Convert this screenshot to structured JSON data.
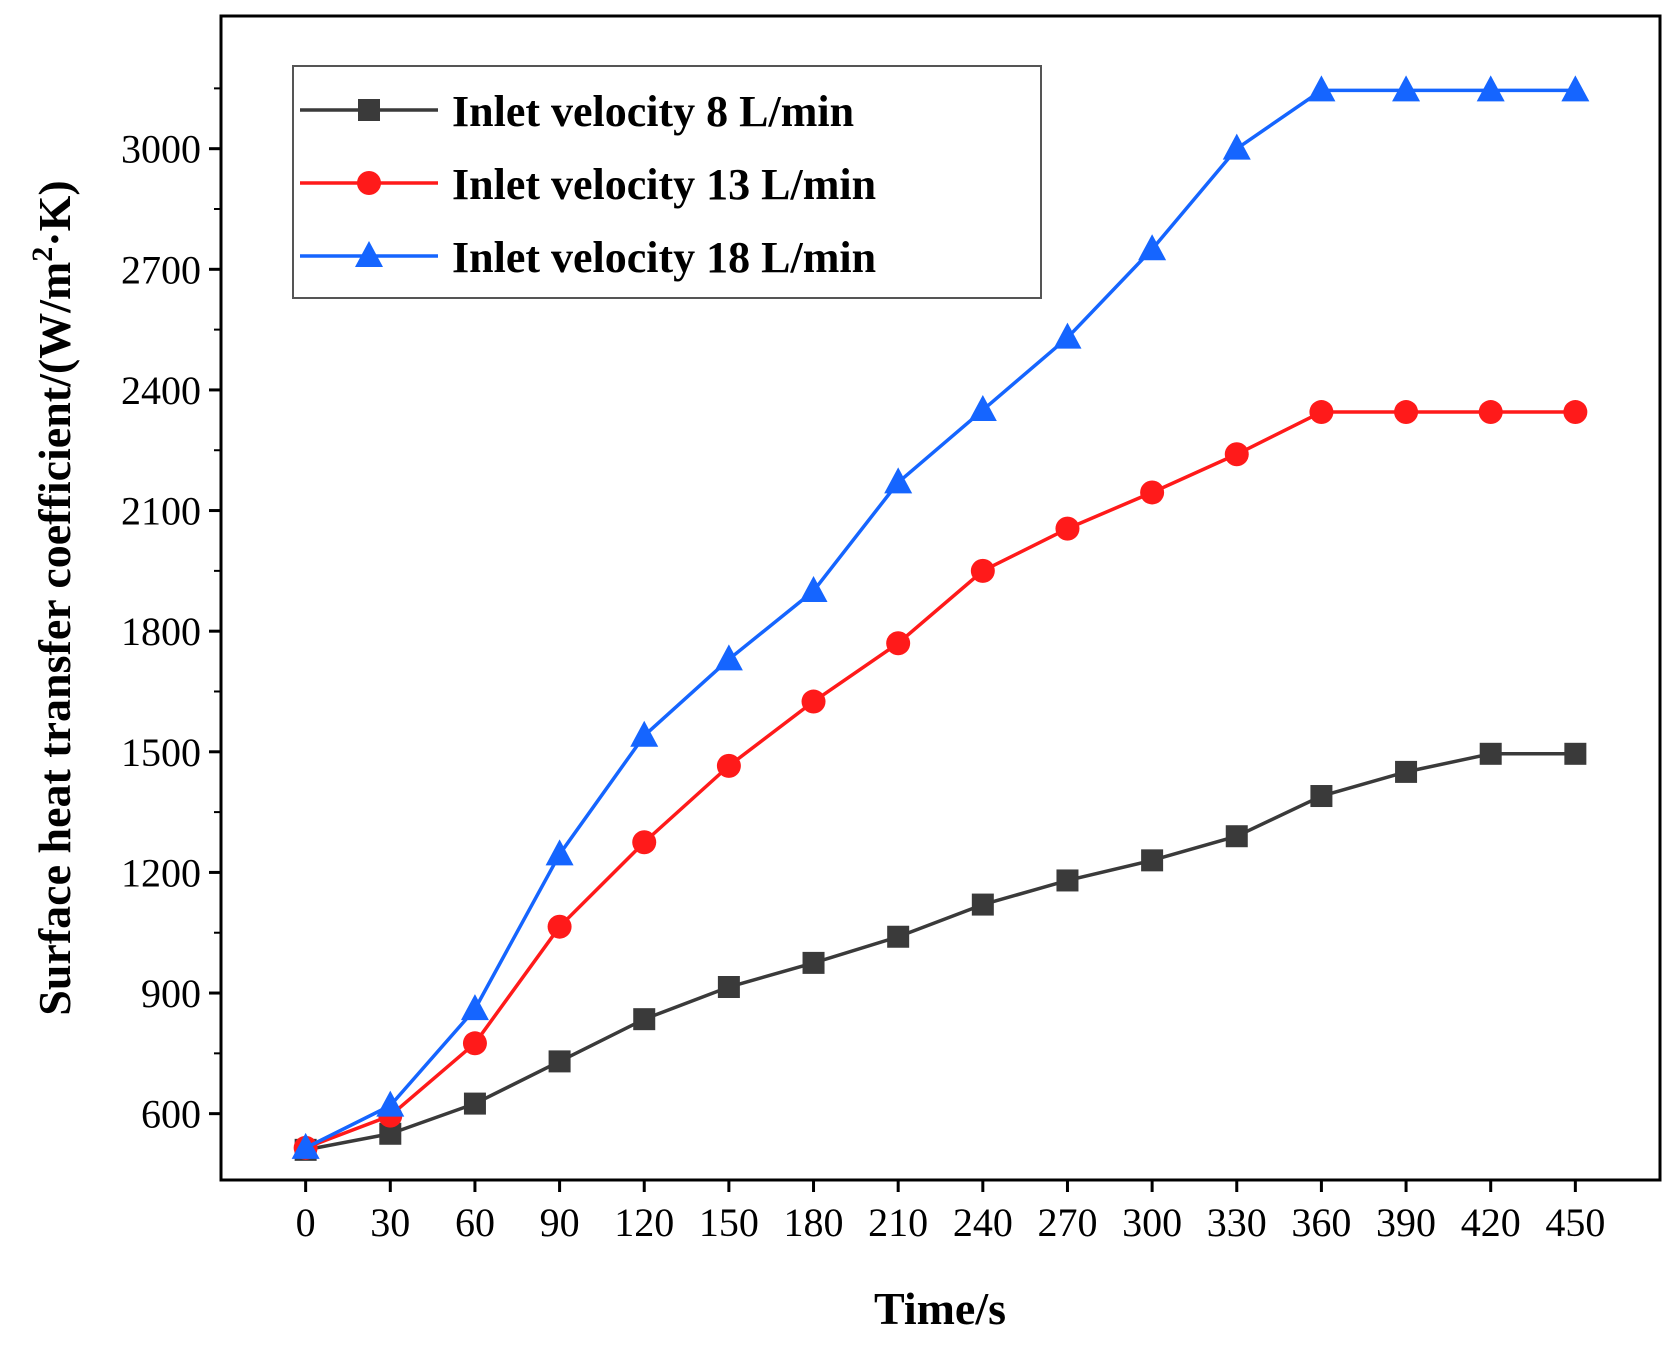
{
  "chart_data": {
    "type": "line",
    "title": "",
    "xlabel": "Time/s",
    "ylabel": "Surface heat transfer coefficient/(W/m²·K)",
    "ylabel_parts": {
      "main": "Surface heat transfer coefficient/(W/m",
      "sup": "2",
      "tail": "·K)"
    },
    "x": [
      0,
      30,
      60,
      90,
      120,
      150,
      180,
      210,
      240,
      270,
      300,
      330,
      360,
      390,
      420,
      450
    ],
    "xlim": [
      -30,
      480
    ],
    "ylim": [
      435,
      3330
    ],
    "yticks": [
      600,
      900,
      1200,
      1500,
      1800,
      2100,
      2400,
      2700,
      3000
    ],
    "grid": false,
    "legend_position": "top-left",
    "series": [
      {
        "name": "Inlet velocity 8 L/min",
        "color": "#3a3a3a",
        "marker": "square",
        "values": [
          510,
          550,
          625,
          730,
          835,
          915,
          975,
          1040,
          1120,
          1180,
          1230,
          1290,
          1390,
          1450,
          1495,
          1495
        ]
      },
      {
        "name": "Inlet velocity 13 L/min",
        "color": "#ff1a1a",
        "marker": "circle",
        "values": [
          515,
          595,
          775,
          1065,
          1275,
          1465,
          1625,
          1770,
          1950,
          2055,
          2145,
          2240,
          2345,
          2345,
          2345,
          2345
        ]
      },
      {
        "name": "Inlet velocity 18 L/min",
        "color": "#1565ff",
        "marker": "triangle",
        "values": [
          515,
          620,
          860,
          1245,
          1540,
          1730,
          1900,
          2170,
          2350,
          2530,
          2750,
          3000,
          3145,
          3145,
          3145,
          3145
        ]
      }
    ]
  }
}
